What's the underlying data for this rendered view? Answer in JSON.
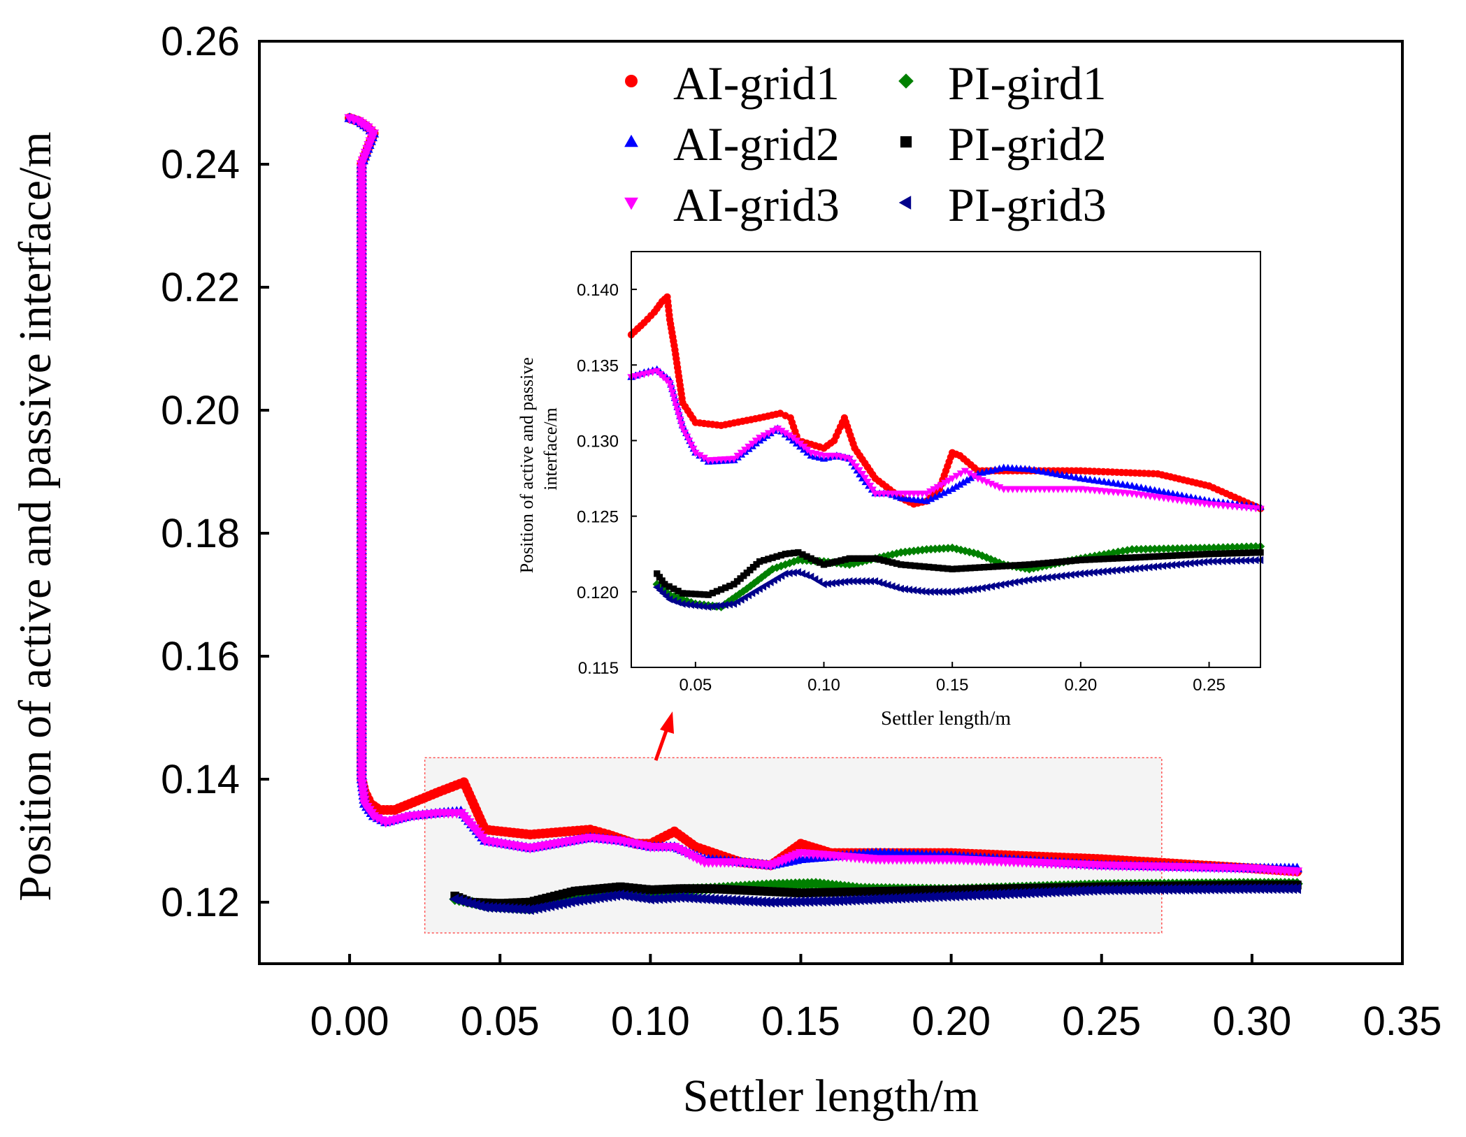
{
  "chart_data": [
    {
      "type": "scatter",
      "title": "",
      "xlabel": "Settler length/m",
      "ylabel": "Position of active and passive interface/m",
      "xlim": [
        -0.03,
        0.35
      ],
      "ylim": [
        0.11,
        0.26
      ],
      "xticks": [
        0.0,
        0.05,
        0.1,
        0.15,
        0.2,
        0.25,
        0.3,
        0.35
      ],
      "xtick_labels": [
        "0.00",
        "0.05",
        "0.10",
        "0.15",
        "0.20",
        "0.25",
        "0.30",
        "0.35"
      ],
      "yticks": [
        0.12,
        0.14,
        0.16,
        0.18,
        0.2,
        0.22,
        0.24,
        0.26
      ],
      "ytick_labels": [
        "0.12",
        "0.14",
        "0.16",
        "0.18",
        "0.20",
        "0.22",
        "0.24",
        "0.26"
      ],
      "legend_position": "top-right",
      "zoom_region": {
        "x": [
          0.025,
          0.27
        ],
        "y": [
          0.115,
          0.1435
        ]
      },
      "series": [
        {
          "name": "AI-grid1",
          "marker": "circle",
          "color": "#ff0000",
          "x": [
            0.0,
            0.003,
            0.006,
            0.008,
            0.004,
            0.004,
            0.004,
            0.004,
            0.004,
            0.004,
            0.004,
            0.004,
            0.004,
            0.005,
            0.007,
            0.01,
            0.015,
            0.02,
            0.03,
            0.038,
            0.045,
            0.06,
            0.08,
            0.086,
            0.095,
            0.1,
            0.108,
            0.115,
            0.13,
            0.14,
            0.15,
            0.16,
            0.2,
            0.25,
            0.3,
            0.315
          ],
          "y": [
            0.2475,
            0.247,
            0.246,
            0.245,
            0.24,
            0.23,
            0.22,
            0.2,
            0.18,
            0.16,
            0.15,
            0.145,
            0.14,
            0.138,
            0.136,
            0.135,
            0.135,
            0.136,
            0.138,
            0.1395,
            0.1318,
            0.131,
            0.1318,
            0.131,
            0.1295,
            0.1295,
            0.1315,
            0.129,
            0.1265,
            0.126,
            0.1295,
            0.128,
            0.128,
            0.127,
            0.1255,
            0.125
          ]
        },
        {
          "name": "AI-grid2",
          "marker": "triangle-up",
          "color": "#0000ff",
          "x": [
            0.0,
            0.003,
            0.006,
            0.008,
            0.004,
            0.004,
            0.004,
            0.004,
            0.004,
            0.004,
            0.004,
            0.004,
            0.005,
            0.008,
            0.012,
            0.02,
            0.03,
            0.037,
            0.045,
            0.06,
            0.08,
            0.09,
            0.1,
            0.108,
            0.118,
            0.13,
            0.14,
            0.15,
            0.175,
            0.2,
            0.25,
            0.3,
            0.315
          ],
          "y": [
            0.2475,
            0.247,
            0.246,
            0.245,
            0.24,
            0.23,
            0.22,
            0.2,
            0.18,
            0.16,
            0.15,
            0.14,
            0.136,
            0.134,
            0.133,
            0.134,
            0.1345,
            0.1348,
            0.13,
            0.1288,
            0.1305,
            0.13,
            0.129,
            0.129,
            0.127,
            0.1265,
            0.126,
            0.127,
            0.128,
            0.1275,
            0.126,
            0.1255,
            0.1255
          ]
        },
        {
          "name": "AI-grid3",
          "marker": "triangle-down",
          "color": "#ff00ff",
          "x": [
            0.0,
            0.003,
            0.006,
            0.008,
            0.004,
            0.004,
            0.004,
            0.004,
            0.004,
            0.004,
            0.004,
            0.004,
            0.005,
            0.008,
            0.012,
            0.02,
            0.03,
            0.037,
            0.045,
            0.06,
            0.08,
            0.09,
            0.1,
            0.108,
            0.118,
            0.13,
            0.14,
            0.15,
            0.175,
            0.2,
            0.25,
            0.3,
            0.315
          ],
          "y": [
            0.2475,
            0.247,
            0.246,
            0.245,
            0.24,
            0.23,
            0.22,
            0.2,
            0.18,
            0.16,
            0.15,
            0.14,
            0.136,
            0.134,
            0.133,
            0.134,
            0.1345,
            0.1345,
            0.13,
            0.1288,
            0.1305,
            0.13,
            0.129,
            0.129,
            0.1265,
            0.1265,
            0.126,
            0.128,
            0.127,
            0.127,
            0.126,
            0.1255,
            0.125
          ]
        },
        {
          "name": "PI-gird1",
          "marker": "diamond",
          "color": "#008000",
          "x": [
            0.035,
            0.045,
            0.06,
            0.075,
            0.09,
            0.1,
            0.12,
            0.14,
            0.155,
            0.17,
            0.2,
            0.25,
            0.3,
            0.315
          ],
          "y": [
            0.1205,
            0.1195,
            0.119,
            0.121,
            0.122,
            0.1218,
            0.1222,
            0.1228,
            0.123,
            0.1222,
            0.122,
            0.1228,
            0.123,
            0.123
          ]
        },
        {
          "name": "PI-grid2",
          "marker": "square",
          "color": "#000000",
          "x": [
            0.035,
            0.04,
            0.05,
            0.06,
            0.075,
            0.09,
            0.1,
            0.11,
            0.12,
            0.15,
            0.2,
            0.25,
            0.3,
            0.315
          ],
          "y": [
            0.121,
            0.12,
            0.1198,
            0.12,
            0.1218,
            0.1225,
            0.122,
            0.1222,
            0.1222,
            0.1215,
            0.122,
            0.1225,
            0.1228,
            0.1228
          ]
        },
        {
          "name": "PI-grid3",
          "marker": "triangle-left",
          "color": "#00008b",
          "x": [
            0.035,
            0.045,
            0.06,
            0.075,
            0.09,
            0.1,
            0.11,
            0.12,
            0.14,
            0.16,
            0.2,
            0.25,
            0.3,
            0.315
          ],
          "y": [
            0.1205,
            0.1192,
            0.1188,
            0.1202,
            0.1212,
            0.1205,
            0.1208,
            0.1205,
            0.12,
            0.1202,
            0.121,
            0.122,
            0.1222,
            0.1222
          ]
        }
      ]
    },
    {
      "type": "scatter",
      "title": "",
      "xlabel": "Settler length/m",
      "ylabel_line1": "Position of active and passive",
      "ylabel_line2": "interface/m",
      "xlim": [
        0.025,
        0.27
      ],
      "ylim": [
        0.115,
        0.1425
      ],
      "xticks": [
        0.05,
        0.1,
        0.15,
        0.2,
        0.25
      ],
      "xtick_labels": [
        "0.05",
        "0.10",
        "0.15",
        "0.20",
        "0.25"
      ],
      "yticks": [
        0.115,
        0.12,
        0.125,
        0.13,
        0.135,
        0.14
      ],
      "ytick_labels": [
        "0.115",
        "0.120",
        "0.125",
        "0.130",
        "0.135",
        "0.140"
      ],
      "series": [
        {
          "name": "AI-grid1",
          "marker": "circle",
          "color": "#ff0000",
          "x": [
            0.025,
            0.03,
            0.034,
            0.037,
            0.039,
            0.04,
            0.042,
            0.045,
            0.05,
            0.06,
            0.075,
            0.083,
            0.087,
            0.09,
            0.1,
            0.104,
            0.108,
            0.112,
            0.12,
            0.13,
            0.135,
            0.14,
            0.145,
            0.15,
            0.153,
            0.16,
            0.17,
            0.2,
            0.23,
            0.25,
            0.27
          ],
          "y": [
            0.137,
            0.1378,
            0.1385,
            0.1392,
            0.1395,
            0.138,
            0.136,
            0.1325,
            0.1312,
            0.131,
            0.1315,
            0.1318,
            0.1315,
            0.13,
            0.1295,
            0.13,
            0.1315,
            0.1295,
            0.1275,
            0.1262,
            0.1258,
            0.126,
            0.1268,
            0.1292,
            0.129,
            0.128,
            0.128,
            0.128,
            0.1278,
            0.127,
            0.1255
          ]
        },
        {
          "name": "AI-grid2",
          "marker": "triangle-up",
          "color": "#0000ff",
          "x": [
            0.025,
            0.03,
            0.035,
            0.04,
            0.045,
            0.05,
            0.055,
            0.065,
            0.075,
            0.082,
            0.088,
            0.095,
            0.1,
            0.105,
            0.11,
            0.115,
            0.12,
            0.125,
            0.13,
            0.14,
            0.15,
            0.16,
            0.17,
            0.18,
            0.2,
            0.22,
            0.25,
            0.27
          ],
          "y": [
            0.1342,
            0.1345,
            0.1347,
            0.134,
            0.131,
            0.1292,
            0.1286,
            0.1287,
            0.13,
            0.1308,
            0.13,
            0.129,
            0.1288,
            0.129,
            0.1288,
            0.1275,
            0.1265,
            0.1265,
            0.1262,
            0.126,
            0.1268,
            0.1278,
            0.1282,
            0.1281,
            0.1275,
            0.127,
            0.126,
            0.1256
          ]
        },
        {
          "name": "AI-grid3",
          "marker": "triangle-down",
          "color": "#ff00ff",
          "x": [
            0.025,
            0.03,
            0.035,
            0.04,
            0.045,
            0.05,
            0.055,
            0.065,
            0.075,
            0.082,
            0.088,
            0.095,
            0.1,
            0.105,
            0.11,
            0.115,
            0.12,
            0.13,
            0.14,
            0.15,
            0.155,
            0.16,
            0.17,
            0.2,
            0.22,
            0.25,
            0.27
          ],
          "y": [
            0.1342,
            0.1344,
            0.1346,
            0.1338,
            0.1308,
            0.1292,
            0.1287,
            0.1288,
            0.1302,
            0.1308,
            0.1302,
            0.1292,
            0.129,
            0.129,
            0.1288,
            0.1278,
            0.1265,
            0.1265,
            0.1265,
            0.1275,
            0.128,
            0.1275,
            0.1268,
            0.1268,
            0.1265,
            0.1258,
            0.1255
          ]
        },
        {
          "name": "PI-gird1",
          "marker": "diamond",
          "color": "#008000",
          "x": [
            0.035,
            0.04,
            0.05,
            0.06,
            0.07,
            0.08,
            0.09,
            0.1,
            0.11,
            0.12,
            0.13,
            0.14,
            0.15,
            0.16,
            0.17,
            0.18,
            0.2,
            0.22,
            0.25,
            0.27
          ],
          "y": [
            0.1205,
            0.1198,
            0.1192,
            0.119,
            0.1202,
            0.1215,
            0.1221,
            0.122,
            0.1218,
            0.1222,
            0.1226,
            0.1228,
            0.1229,
            0.1225,
            0.1218,
            0.1215,
            0.1222,
            0.1228,
            0.1229,
            0.123
          ]
        },
        {
          "name": "PI-grid2",
          "marker": "square",
          "color": "#000000",
          "x": [
            0.035,
            0.038,
            0.045,
            0.055,
            0.065,
            0.075,
            0.085,
            0.09,
            0.095,
            0.1,
            0.11,
            0.12,
            0.13,
            0.15,
            0.18,
            0.2,
            0.25,
            0.27
          ],
          "y": [
            0.1212,
            0.1205,
            0.1199,
            0.1198,
            0.1205,
            0.122,
            0.1225,
            0.1226,
            0.1222,
            0.1218,
            0.1222,
            0.1222,
            0.1218,
            0.1215,
            0.1218,
            0.1221,
            0.1225,
            0.1226
          ]
        },
        {
          "name": "PI-grid3",
          "marker": "triangle-left",
          "color": "#00008b",
          "x": [
            0.035,
            0.04,
            0.045,
            0.055,
            0.065,
            0.075,
            0.085,
            0.09,
            0.095,
            0.1,
            0.11,
            0.12,
            0.13,
            0.14,
            0.15,
            0.16,
            0.18,
            0.2,
            0.25,
            0.27
          ],
          "y": [
            0.1203,
            0.1195,
            0.1192,
            0.119,
            0.1192,
            0.1202,
            0.1212,
            0.1213,
            0.121,
            0.1205,
            0.1207,
            0.1207,
            0.1202,
            0.12,
            0.12,
            0.1202,
            0.1208,
            0.1212,
            0.122,
            0.1221
          ]
        }
      ]
    }
  ]
}
